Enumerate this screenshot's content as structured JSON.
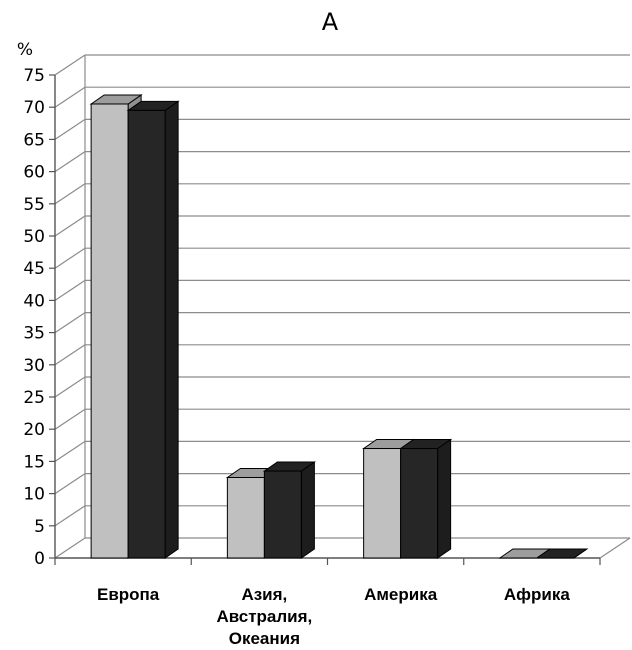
{
  "chart_data": {
    "type": "bar",
    "title": "A",
    "ylabel": "%",
    "xlabel": "",
    "ylim": [
      0,
      75
    ],
    "ytick_step": 5,
    "grid": true,
    "legend": "none",
    "style": "3d",
    "categories": [
      [
        "Европа"
      ],
      [
        "Азия,",
        "Австралия,",
        "Океания"
      ],
      [
        "Америка"
      ],
      [
        "Африка"
      ]
    ],
    "series": [
      {
        "color": "#c0c0c0",
        "values": [
          70.5,
          12.5,
          17,
          0
        ]
      },
      {
        "color": "#262626",
        "values": [
          69.5,
          13.5,
          17,
          0
        ]
      }
    ]
  }
}
